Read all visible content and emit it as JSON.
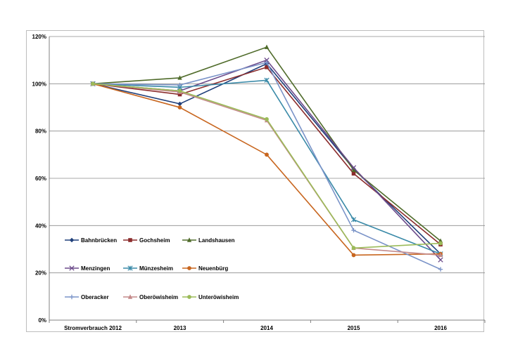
{
  "chart_data": {
    "type": "line",
    "categories": [
      "Stromverbrauch 2012",
      "2013",
      "2014",
      "2015",
      "2016"
    ],
    "ylim": [
      0,
      120
    ],
    "yticks": [
      0,
      20,
      40,
      60,
      80,
      100,
      120
    ],
    "ytick_labels": [
      "0%",
      "20%",
      "40%",
      "60%",
      "80%",
      "100%",
      "120%"
    ],
    "grid": true,
    "legend_position": "lower-left",
    "series": [
      {
        "name": "Bahnbrücken",
        "color": "#1f3f7a",
        "marker": "diamond",
        "values": [
          100,
          91.5,
          108.5,
          64,
          28
        ]
      },
      {
        "name": "Gochsheim",
        "color": "#8b2c2c",
        "marker": "square",
        "values": [
          100,
          95.5,
          107,
          62,
          32
        ]
      },
      {
        "name": "Landshausen",
        "color": "#4f6b2a",
        "marker": "triangle",
        "values": [
          100,
          102.5,
          115.5,
          63.5,
          33.5
        ]
      },
      {
        "name": "Menzingen",
        "color": "#6b4a8a",
        "marker": "x",
        "values": [
          100,
          97,
          110,
          64.5,
          25.5
        ]
      },
      {
        "name": "Münzesheim",
        "color": "#3a8aa8",
        "marker": "star",
        "values": [
          100,
          98.5,
          101.5,
          42.5,
          28
        ]
      },
      {
        "name": "Neuenbürg",
        "color": "#c8661f",
        "marker": "circle",
        "values": [
          100,
          90,
          70,
          27.5,
          28
        ]
      },
      {
        "name": "Oberacker",
        "color": "#7a93c8",
        "marker": "plus",
        "values": [
          100,
          99.5,
          109,
          38,
          21.5
        ]
      },
      {
        "name": "Oberöwisheim",
        "color": "#c48a8a",
        "marker": "triangle",
        "values": [
          100,
          96.5,
          84.5,
          30.5,
          27.5
        ]
      },
      {
        "name": "Unteröwisheim",
        "color": "#9bbb59",
        "marker": "circle",
        "values": [
          100,
          97,
          85,
          30.5,
          32.5
        ]
      }
    ]
  }
}
